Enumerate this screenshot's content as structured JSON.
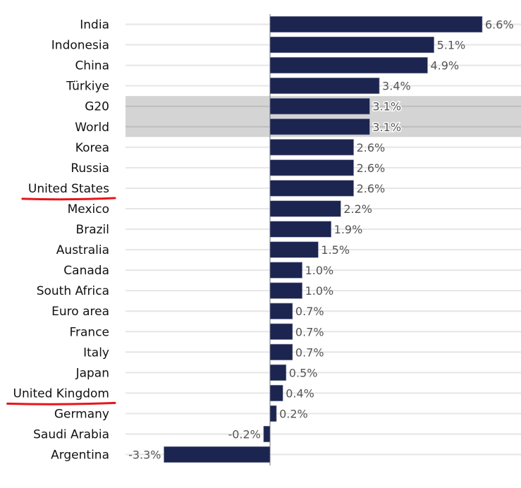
{
  "chart_data": {
    "type": "bar",
    "orientation": "horizontal",
    "title": "",
    "xlabel": "",
    "ylabel": "",
    "value_suffix": "%",
    "xlim": [
      -3.3,
      6.6
    ],
    "grid": true,
    "categories": [
      "India",
      "Indonesia",
      "China",
      "Türkiye",
      "G20",
      "World",
      "Korea",
      "Russia",
      "United States",
      "Mexico",
      "Brazil",
      "Australia",
      "Canada",
      "South Africa",
      "Euro area",
      "France",
      "Italy",
      "Japan",
      "United Kingdom",
      "Germany",
      "Saudi Arabia",
      "Argentina"
    ],
    "values": [
      6.6,
      5.1,
      4.9,
      3.4,
      3.1,
      3.1,
      2.6,
      2.6,
      2.6,
      2.2,
      1.9,
      1.5,
      1.0,
      1.0,
      0.7,
      0.7,
      0.7,
      0.5,
      0.4,
      0.2,
      -0.2,
      -3.3
    ],
    "data_labels": [
      "6.6%",
      "5.1%",
      "4.9%",
      "3.4%",
      "3.1%",
      "3.1%",
      "2.6%",
      "2.6%",
      "2.6%",
      "2.2%",
      "1.9%",
      "1.5%",
      "1.0%",
      "1.0%",
      "0.7%",
      "0.7%",
      "0.7%",
      "0.5%",
      "0.4%",
      "0.2%",
      "-0.2%",
      "-3.3%"
    ],
    "highlighted_rows": [
      "G20",
      "World"
    ],
    "underlined_categories": [
      "United States",
      "United Kingdom"
    ],
    "colors": {
      "bar": "#1c2550",
      "highlight": "#d4d4d4",
      "underline": "#e8141c",
      "label": "#555555"
    }
  }
}
